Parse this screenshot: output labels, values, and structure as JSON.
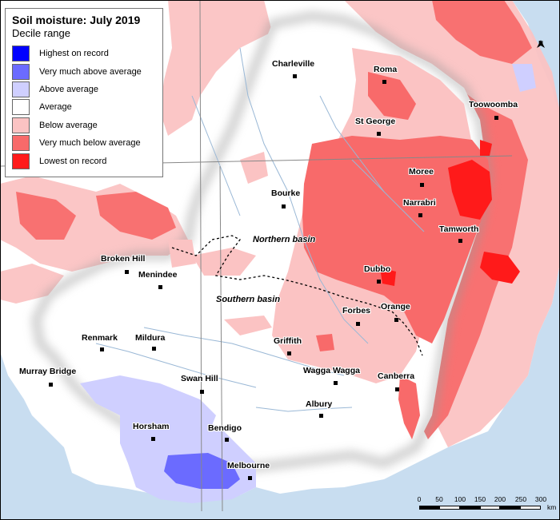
{
  "legend": {
    "title": "Soil moisture: July 2019",
    "subtitle": "Decile range",
    "items": [
      {
        "label": "Highest on record",
        "color": "#0000ff"
      },
      {
        "label": "Very much above average",
        "color": "#6b6bff"
      },
      {
        "label": "Above average",
        "color": "#cfcfff"
      },
      {
        "label": "Average",
        "color": "#ffffff"
      },
      {
        "label": "Below average",
        "color": "#fbc3c3"
      },
      {
        "label": "Very much below average",
        "color": "#f86a6a"
      },
      {
        "label": "Lowest on record",
        "color": "#ff1a1a"
      }
    ]
  },
  "places": {
    "charleville": "Charleville",
    "roma": "Roma",
    "toowoomba": "Toowoomba",
    "st_george": "St George",
    "moree": "Moree",
    "bourke": "Bourke",
    "narrabri": "Narrabri",
    "tamworth": "Tamworth",
    "broken_hill": "Broken Hill",
    "menindee": "Menindee",
    "dubbo": "Dubbo",
    "forbes": "Forbes",
    "orange": "Orange",
    "renmark": "Renmark",
    "mildura": "Mildura",
    "griffith": "Griffith",
    "murray_bridge": "Murray Bridge",
    "swan_hill": "Swan Hill",
    "wagga_wagga": "Wagga Wagga",
    "canberra": "Canberra",
    "albury": "Albury",
    "horsham": "Horsham",
    "bendigo": "Bendigo",
    "melbourne": "Melbourne"
  },
  "basins": {
    "northern": "Northern basin",
    "southern": "Southern basin"
  },
  "scale": {
    "ticks": [
      "0",
      "50",
      "100",
      "150",
      "200",
      "250",
      "300"
    ],
    "unit": "km"
  },
  "north_label": "N"
}
